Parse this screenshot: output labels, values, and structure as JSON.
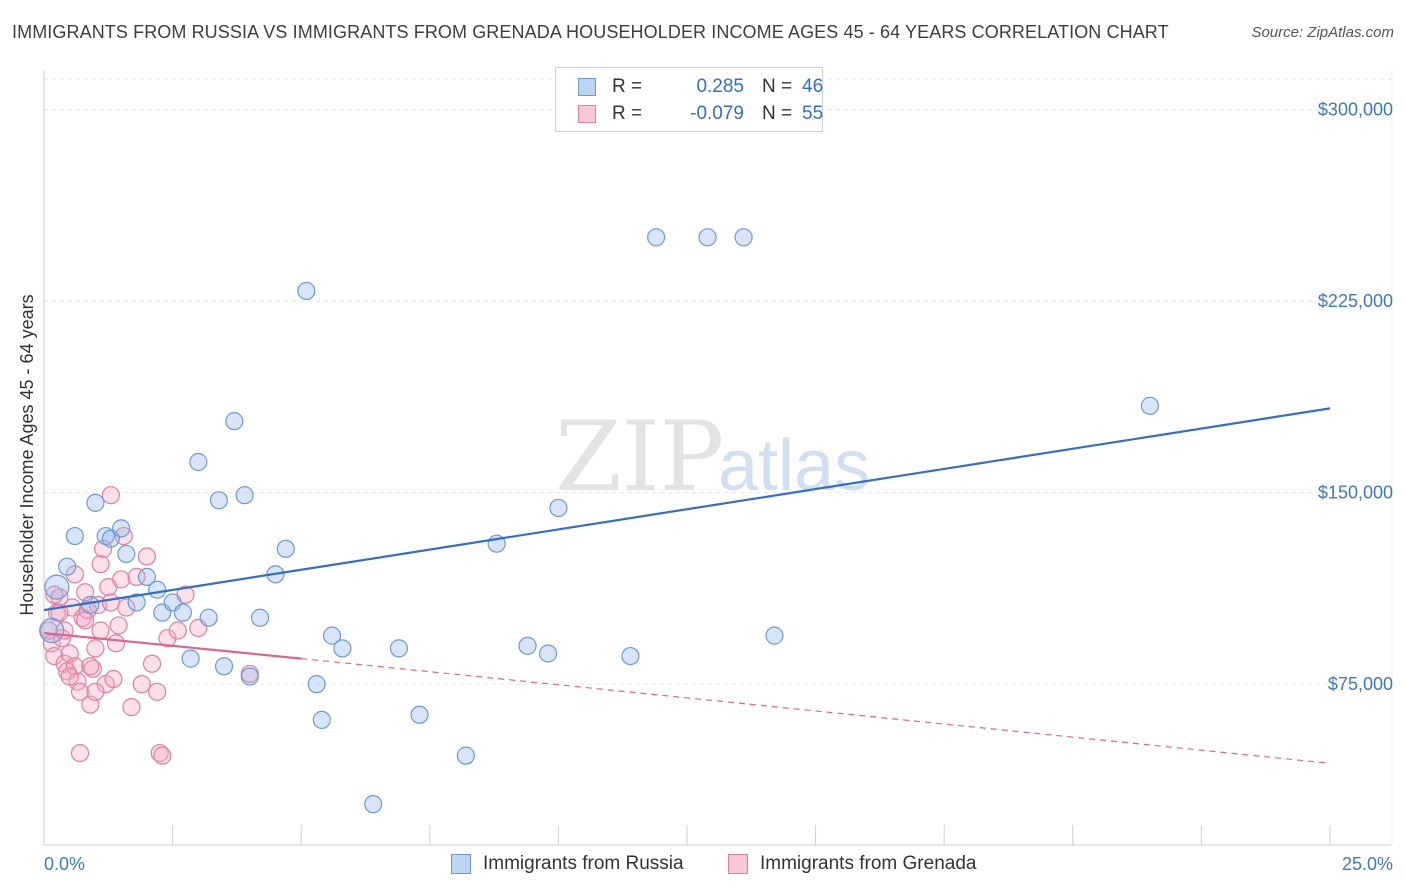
{
  "title": "IMMIGRANTS FROM RUSSIA VS IMMIGRANTS FROM GRENADA HOUSEHOLDER INCOME AGES 45 - 64 YEARS CORRELATION CHART",
  "source": "Source: ZipAtlas.com",
  "watermark": {
    "zip": "ZIP",
    "atlas": "atlas"
  },
  "legend": {
    "russia": {
      "r_label": "R =",
      "r_value": "0.285",
      "n_label": "N =",
      "n_value": "46"
    },
    "grenada": {
      "r_label": "R =",
      "r_value": "-0.079",
      "n_label": "N =",
      "n_value": "55"
    }
  },
  "chart_data": {
    "type": "scatter",
    "title": "IMMIGRANTS FROM RUSSIA VS IMMIGRANTS FROM GRENADA HOUSEHOLDER INCOME AGES 45 - 64 YEARS CORRELATION CHART",
    "xlabel": "",
    "ylabel": "Householder Income Ages 45 - 64 years",
    "xlim": [
      0,
      25
    ],
    "ylim": [
      12000,
      312000
    ],
    "x_tick_labels": [
      "0.0%",
      "25.0%"
    ],
    "y_ticks": [
      75000,
      150000,
      225000,
      300000
    ],
    "y_tick_labels": [
      "$75,000",
      "$150,000",
      "$225,000",
      "$300,000"
    ],
    "series": [
      {
        "name": "Immigrants from Russia",
        "color": "#8cb4e8",
        "edge": "#6a9ad8",
        "trend": {
          "x": [
            0,
            25
          ],
          "y": [
            104000,
            183000
          ],
          "color": "#2f6fcf",
          "dash": false
        },
        "points": [
          [
            0.25,
            113000
          ],
          [
            0.45,
            121000
          ],
          [
            0.6,
            133000
          ],
          [
            0.9,
            106000
          ],
          [
            1.0,
            146000
          ],
          [
            1.2,
            133000
          ],
          [
            1.3,
            132000
          ],
          [
            1.5,
            136000
          ],
          [
            1.6,
            126000
          ],
          [
            1.8,
            107000
          ],
          [
            2.0,
            117000
          ],
          [
            2.2,
            112000
          ],
          [
            2.3,
            103000
          ],
          [
            2.5,
            107000
          ],
          [
            2.7,
            103000
          ],
          [
            2.85,
            85000
          ],
          [
            3.0,
            162000
          ],
          [
            3.2,
            101000
          ],
          [
            3.4,
            147000
          ],
          [
            3.5,
            82000
          ],
          [
            3.7,
            178000
          ],
          [
            3.9,
            149000
          ],
          [
            4.0,
            78000
          ],
          [
            4.2,
            101000
          ],
          [
            4.5,
            118000
          ],
          [
            4.7,
            128000
          ],
          [
            5.1,
            229000
          ],
          [
            5.3,
            75000
          ],
          [
            5.4,
            61000
          ],
          [
            5.6,
            94000
          ],
          [
            5.8,
            89000
          ],
          [
            6.4,
            28000
          ],
          [
            6.9,
            89000
          ],
          [
            7.3,
            63000
          ],
          [
            8.2,
            47000
          ],
          [
            8.8,
            130000
          ],
          [
            9.4,
            90000
          ],
          [
            9.8,
            87000
          ],
          [
            10.0,
            144000
          ],
          [
            11.4,
            86000
          ],
          [
            11.9,
            250000
          ],
          [
            12.9,
            250000
          ],
          [
            13.6,
            250000
          ],
          [
            14.2,
            94000
          ],
          [
            21.5,
            184000
          ],
          [
            0.15,
            96000
          ]
        ]
      },
      {
        "name": "Immigrants from Grenada",
        "color": "#f2a8c0",
        "edge": "#e47ea0",
        "trend": {
          "x": [
            0,
            5
          ],
          "y": [
            95000,
            85000
          ],
          "color": "#e0628e",
          "dash": false
        },
        "trend_ext": {
          "x": [
            5,
            25
          ],
          "y": [
            85000,
            44000
          ],
          "color": "#e0628e",
          "dash": true
        },
        "points": [
          [
            0.1,
            96000
          ],
          [
            0.15,
            91000
          ],
          [
            0.2,
            86000
          ],
          [
            0.25,
            103000
          ],
          [
            0.3,
            109000
          ],
          [
            0.35,
            93000
          ],
          [
            0.4,
            83000
          ],
          [
            0.45,
            80000
          ],
          [
            0.5,
            87000
          ],
          [
            0.55,
            105000
          ],
          [
            0.6,
            82000
          ],
          [
            0.65,
            76000
          ],
          [
            0.7,
            72000
          ],
          [
            0.7,
            48000
          ],
          [
            0.75,
            101000
          ],
          [
            0.8,
            111000
          ],
          [
            0.85,
            104000
          ],
          [
            0.9,
            67000
          ],
          [
            0.95,
            81000
          ],
          [
            1.0,
            89000
          ],
          [
            1.05,
            106000
          ],
          [
            1.1,
            122000
          ],
          [
            1.15,
            128000
          ],
          [
            1.2,
            75000
          ],
          [
            1.25,
            113000
          ],
          [
            1.3,
            149000
          ],
          [
            1.35,
            77000
          ],
          [
            1.4,
            91000
          ],
          [
            1.45,
            98000
          ],
          [
            1.5,
            116000
          ],
          [
            1.55,
            133000
          ],
          [
            1.6,
            105000
          ],
          [
            1.7,
            66000
          ],
          [
            1.8,
            117000
          ],
          [
            1.9,
            75000
          ],
          [
            2.0,
            125000
          ],
          [
            2.1,
            83000
          ],
          [
            2.2,
            72000
          ],
          [
            2.25,
            48000
          ],
          [
            2.3,
            47000
          ],
          [
            2.4,
            93000
          ],
          [
            2.6,
            96000
          ],
          [
            2.75,
            110000
          ],
          [
            3.0,
            97000
          ],
          [
            4.0,
            79000
          ],
          [
            0.3,
            103000
          ],
          [
            0.5,
            78000
          ],
          [
            0.6,
            118000
          ],
          [
            0.9,
            82000
          ],
          [
            1.1,
            96000
          ],
          [
            0.2,
            110000
          ],
          [
            0.4,
            96000
          ],
          [
            1.3,
            107000
          ],
          [
            1.0,
            72000
          ],
          [
            0.8,
            100000
          ]
        ]
      }
    ]
  },
  "bottom_legend": {
    "russia": "Immigrants from Russia",
    "grenada": "Immigrants from Grenada"
  }
}
